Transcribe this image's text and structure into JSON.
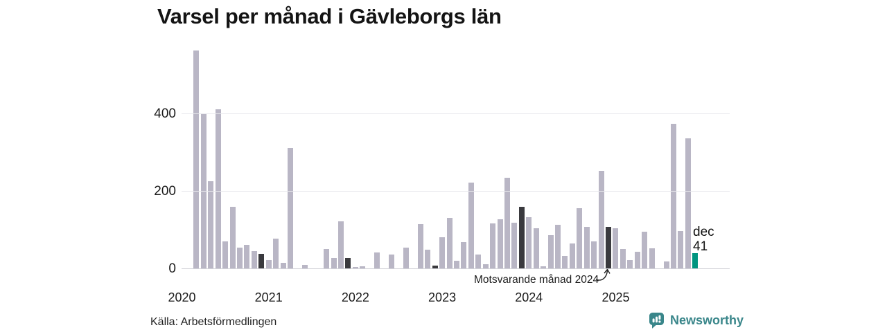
{
  "title": "Varsel per månad i Gävleborgs län",
  "source": "Källa: Arbetsförmedlingen",
  "brand": {
    "name": "Newsworthy",
    "color": "#39868a",
    "icon": "bar-chart-speech-bubble-icon"
  },
  "annotation": {
    "text": "Motsvarande månad 2024",
    "target_month": "2024-12"
  },
  "last_point_label": {
    "month_label": "dec",
    "value_label": "41"
  },
  "chart_data": {
    "type": "bar",
    "title": "Varsel per månad i Gävleborgs län",
    "xlabel": "",
    "ylabel": "",
    "x_start": "2020-01",
    "x_end": "2025-12",
    "months": [
      "2020-01",
      "2020-02",
      "2020-03",
      "2020-04",
      "2020-05",
      "2020-06",
      "2020-07",
      "2020-08",
      "2020-09",
      "2020-10",
      "2020-11",
      "2020-12",
      "2021-01",
      "2021-02",
      "2021-03",
      "2021-04",
      "2021-05",
      "2021-06",
      "2021-07",
      "2021-08",
      "2021-09",
      "2021-10",
      "2021-11",
      "2021-12",
      "2022-01",
      "2022-02",
      "2022-03",
      "2022-04",
      "2022-05",
      "2022-06",
      "2022-07",
      "2022-08",
      "2022-09",
      "2022-10",
      "2022-11",
      "2022-12",
      "2023-01",
      "2023-02",
      "2023-03",
      "2023-04",
      "2023-05",
      "2023-06",
      "2023-07",
      "2023-08",
      "2023-09",
      "2023-10",
      "2023-11",
      "2023-12",
      "2024-01",
      "2024-02",
      "2024-03",
      "2024-04",
      "2024-05",
      "2024-06",
      "2024-07",
      "2024-08",
      "2024-09",
      "2024-10",
      "2024-11",
      "2024-12",
      "2025-01",
      "2025-02",
      "2025-03",
      "2025-04",
      "2025-05",
      "2025-06",
      "2025-07",
      "2025-08",
      "2025-09",
      "2025-10",
      "2025-11",
      "2025-12"
    ],
    "values": [
      0,
      0,
      565,
      401,
      227,
      413,
      71,
      161,
      54,
      61,
      45,
      39,
      22,
      78,
      16,
      313,
      0,
      9,
      0,
      0,
      51,
      28,
      123,
      28,
      5,
      7,
      0,
      42,
      0,
      36,
      0,
      54,
      0,
      115,
      49,
      8,
      82,
      131,
      21,
      69,
      222,
      36,
      12,
      117,
      128,
      236,
      119,
      161,
      134,
      104,
      6,
      86,
      114,
      33,
      66,
      156,
      108,
      71,
      253,
      108,
      105,
      51,
      23,
      44,
      95,
      53,
      0,
      19,
      375,
      97,
      337,
      41
    ],
    "yticks": [
      0,
      200,
      400
    ],
    "ylim": [
      0,
      580
    ],
    "xticks": [
      "2020",
      "2021",
      "2022",
      "2023",
      "2024",
      "2025"
    ],
    "grid": "horizontal",
    "legend": "none",
    "colors": {
      "bar": "#b9b6c5",
      "december_highlight": "#3a3a3e",
      "latest_highlight": "#009580"
    },
    "highlight": {
      "december_indices": [
        11,
        23,
        35,
        47,
        59
      ],
      "latest_index": 71
    }
  }
}
